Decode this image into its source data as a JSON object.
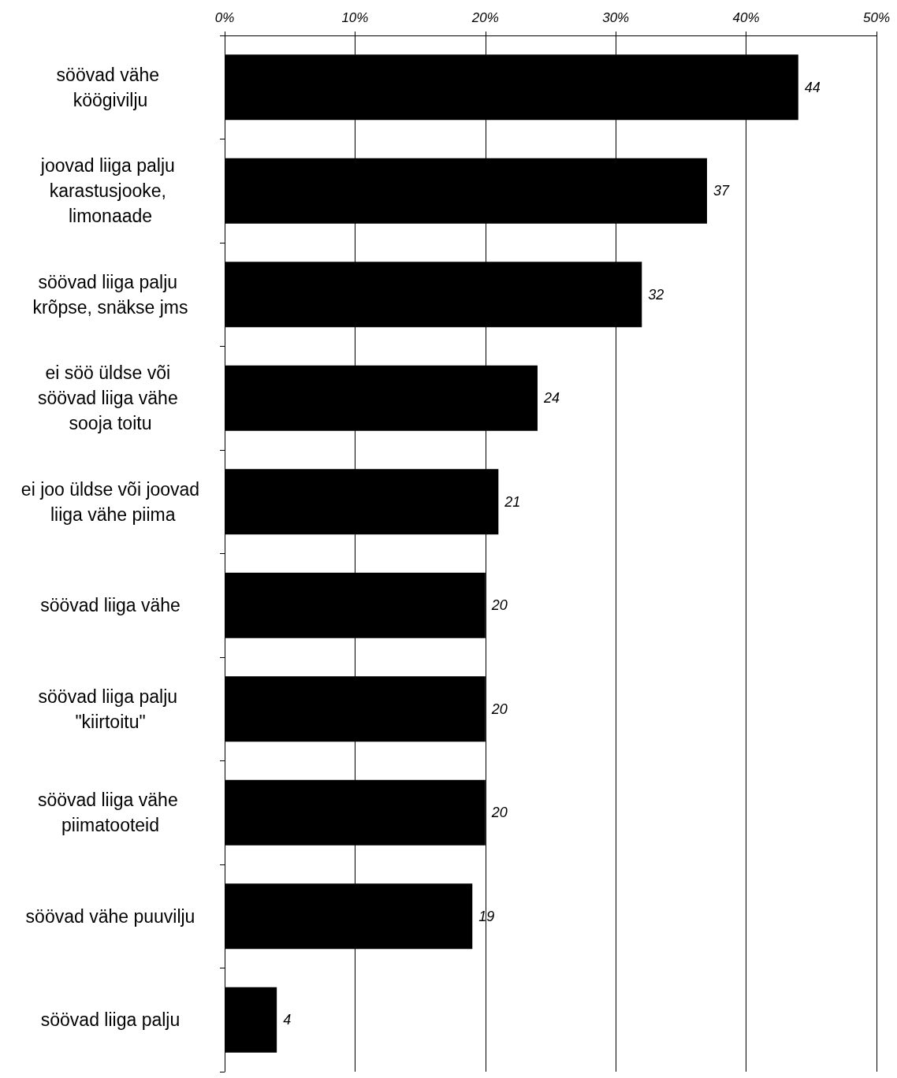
{
  "chart_data": {
    "type": "bar",
    "orientation": "horizontal",
    "categories": [
      "söövad vähe köögivilju",
      "joovad liiga palju karastusjooke, limonaade",
      "söövad liiga palju krõpse, snäkse jms",
      "ei söö üldse või söövad liiga vähe sooja toitu",
      "ei joo üldse või joovad liiga vähe piima",
      "söövad liiga vähe",
      "söövad liiga palju \"kiirtoitu\"",
      "söövad liiga vähe piimatooteid",
      "söövad vähe puuvilju",
      "söövad liiga palju"
    ],
    "values": [
      44,
      37,
      32,
      24,
      21,
      20,
      20,
      20,
      19,
      4
    ],
    "color": "#000000",
    "xlim": [
      0,
      50
    ],
    "xticks": [
      {
        "value": 0,
        "label": "0%"
      },
      {
        "value": 10,
        "label": "10%"
      },
      {
        "value": 20,
        "label": "20%"
      },
      {
        "value": 30,
        "label": "30%"
      },
      {
        "value": 40,
        "label": "40%"
      },
      {
        "value": 50,
        "label": "50%"
      }
    ],
    "grid": "x",
    "data_labels": true
  }
}
